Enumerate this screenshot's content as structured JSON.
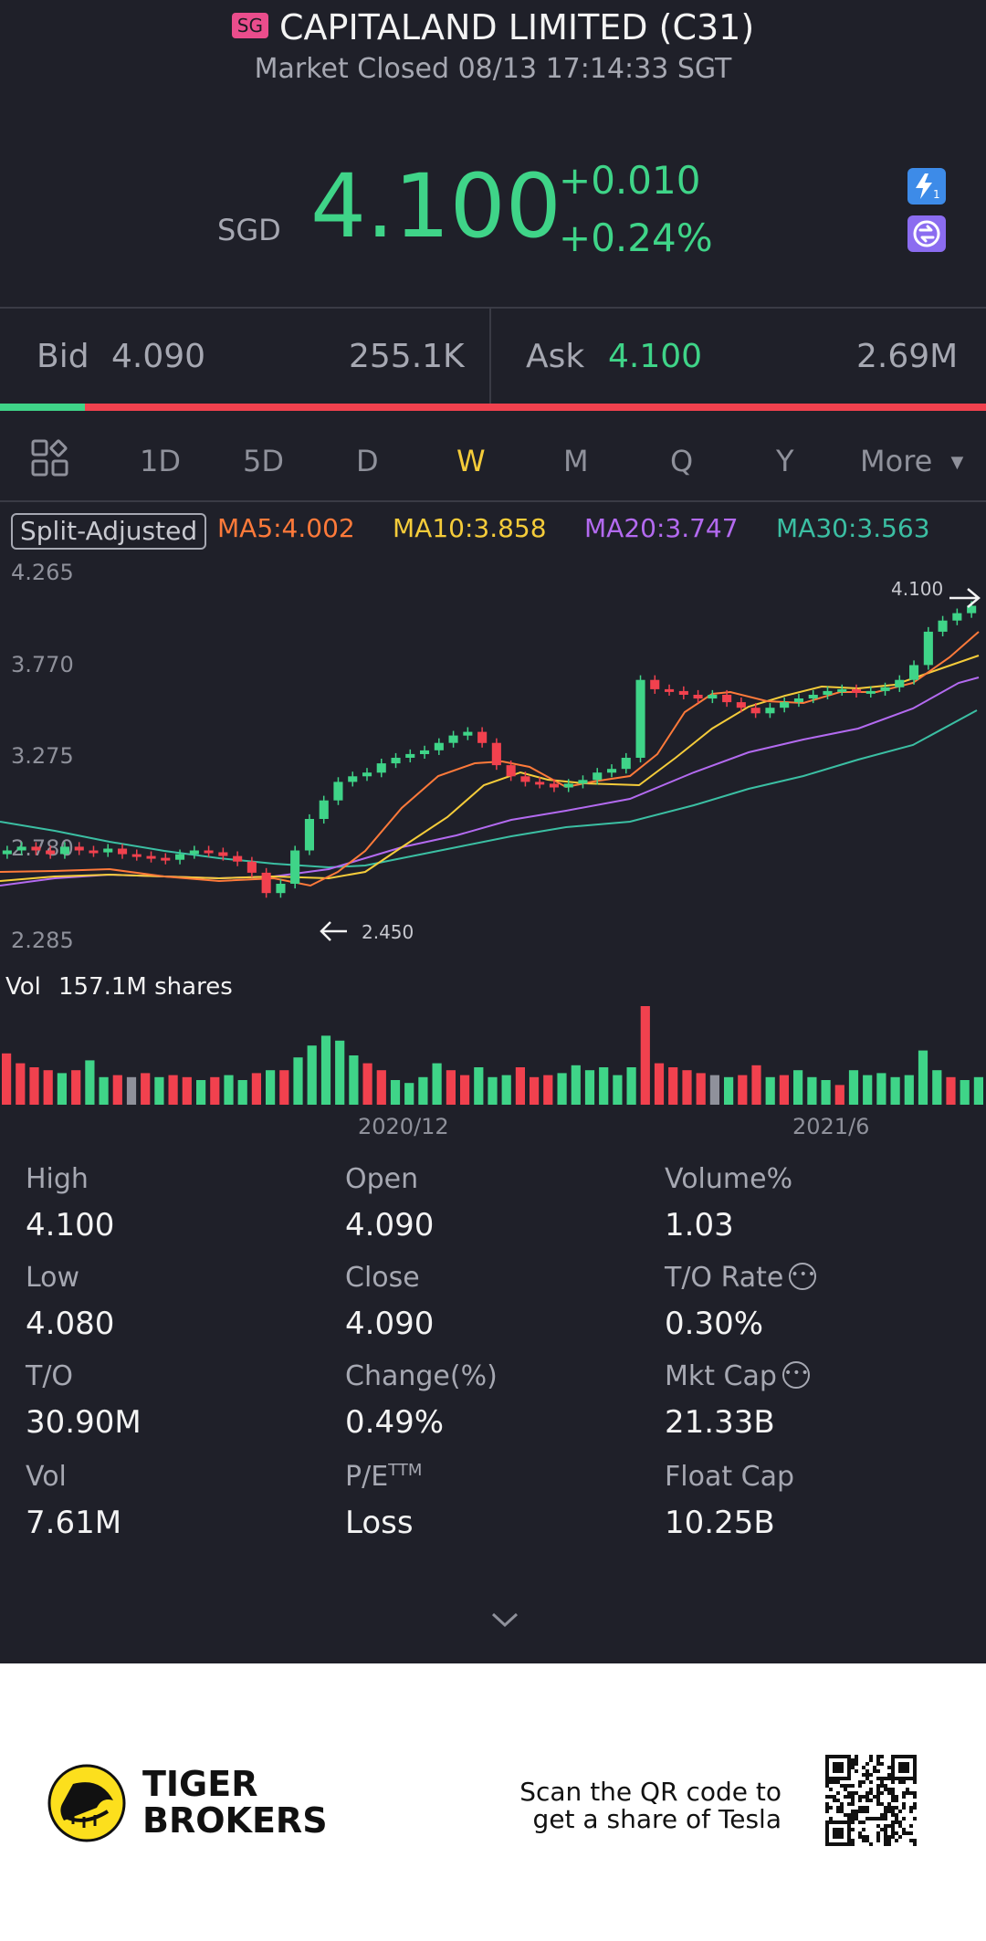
{
  "header": {
    "market_badge": "SG",
    "title": "CAPITALAND LIMITED (C31)",
    "status": "Market Closed 08/13 17:14:33 SGT"
  },
  "quote": {
    "currency": "SGD",
    "price": "4.100",
    "change": "+0.010",
    "change_pct": "+0.24%",
    "icons": [
      "lightning-level1-icon",
      "swap-icon"
    ]
  },
  "orderbook": {
    "bid_label": "Bid",
    "bid_price": "4.090",
    "bid_size": "255.1K",
    "ask_label": "Ask",
    "ask_price": "4.100",
    "ask_size": "2.69M",
    "bid_ratio": 0.086
  },
  "tabs": {
    "items": [
      "1D",
      "5D",
      "D",
      "W",
      "M",
      "Q",
      "Y",
      "More"
    ],
    "active": "W"
  },
  "indicators": {
    "split": "Split-Adjusted",
    "ma5": "MA5:4.002",
    "ma10": "MA10:3.858",
    "ma20": "MA20:3.747",
    "ma30": "MA30:3.563"
  },
  "colors": {
    "up": "#3fd488",
    "down": "#f1414e",
    "ma5": "#ff7a3a",
    "ma10": "#f5cc3a",
    "ma20": "#b36af0",
    "ma30": "#3bbfa3",
    "accent": "#f5cc3a"
  },
  "chart_data": {
    "type": "candlestick",
    "yticks": [
      "4.265",
      "3.770",
      "3.275",
      "2.780",
      "2.285"
    ],
    "ylim": [
      2.285,
      4.265
    ],
    "max_label": "4.100",
    "min_label": "2.450",
    "xticks": [
      "2020/12",
      "2021/6"
    ],
    "volume_label": "Vol",
    "volume_value": "157.1M shares",
    "volume_series": [
      52,
      42,
      38,
      35,
      32,
      35,
      45,
      28,
      30,
      28,
      32,
      28,
      30,
      28,
      25,
      28,
      30,
      25,
      32,
      35,
      35,
      48,
      60,
      70,
      65,
      50,
      42,
      35,
      25,
      22,
      28,
      42,
      35,
      30,
      38,
      28,
      30,
      38,
      28,
      30,
      32,
      40,
      35,
      38,
      30,
      38,
      100,
      42,
      38,
      35,
      32,
      30,
      28,
      30,
      40,
      28,
      30,
      35,
      28,
      25,
      20,
      35,
      30,
      32,
      28,
      30,
      55,
      35,
      28,
      25,
      28
    ],
    "volume_colors": [
      "d",
      "d",
      "d",
      "d",
      "u",
      "d",
      "u",
      "u",
      "d",
      "g",
      "d",
      "u",
      "d",
      "d",
      "u",
      "d",
      "u",
      "u",
      "d",
      "u",
      "d",
      "u",
      "u",
      "u",
      "u",
      "u",
      "d",
      "d",
      "u",
      "u",
      "u",
      "u",
      "d",
      "d",
      "u",
      "u",
      "u",
      "d",
      "d",
      "d",
      "u",
      "u",
      "u",
      "u",
      "u",
      "u",
      "d",
      "d",
      "d",
      "d",
      "d",
      "g",
      "u",
      "d",
      "d",
      "u",
      "d",
      "u",
      "u",
      "u",
      "d",
      "u",
      "u",
      "u",
      "u",
      "u",
      "u",
      "u",
      "d",
      "u",
      "u"
    ]
  },
  "stats": {
    "high_label": "High",
    "high": "4.100",
    "open_label": "Open",
    "open": "4.090",
    "volpct_label": "Volume%",
    "volpct": "1.03",
    "low_label": "Low",
    "low": "4.080",
    "close_label": "Close",
    "close": "4.090",
    "torate_label": "T/O Rate",
    "torate": "0.30%",
    "to_label": "T/O",
    "to": "30.90M",
    "changepct_label": "Change(%)",
    "changepct": "0.49%",
    "mktcap_label": "Mkt Cap",
    "mktcap": "21.33B",
    "vol_label": "Vol",
    "vol": "7.61M",
    "pe_label": "P/E",
    "pe_sup": "TTM",
    "pe": "Loss",
    "floatcap_label": "Float Cap",
    "floatcap": "10.25B"
  },
  "footer": {
    "brand_line1": "TIGER",
    "brand_line2": "BROKERS",
    "promo_line1": "Scan the QR code to",
    "promo_line2": "get a share of Tesla"
  }
}
